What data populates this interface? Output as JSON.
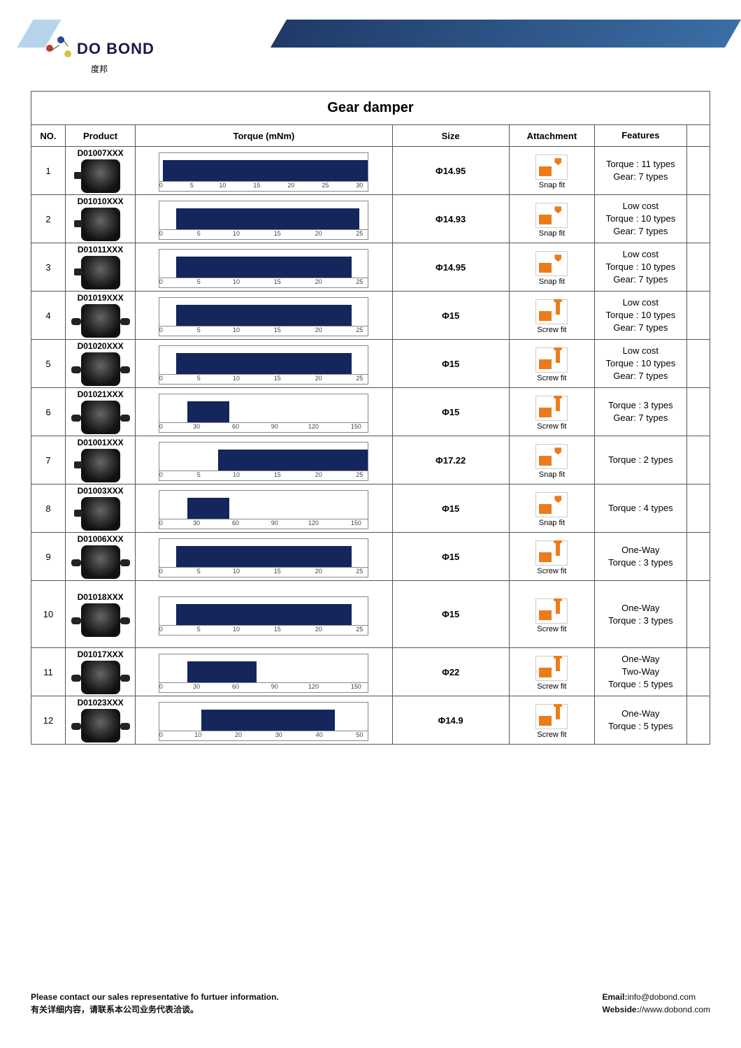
{
  "logo": {
    "brand": "DO BOND",
    "sub": "度邦"
  },
  "table": {
    "title": "Gear damper",
    "headers": {
      "no": "NO.",
      "product": "Product",
      "torque": "Torque (mNm)",
      "size": "Size",
      "attachment": "Attachment",
      "features": "Features"
    }
  },
  "bar_color": "#14265c",
  "icon_color": "#ec7c1b",
  "attach_labels": {
    "snap": "Snap fit",
    "screw": "Screw fit"
  },
  "rows": [
    {
      "no": 1,
      "code": "D01007XXX",
      "img": "snap",
      "axis_max": 30,
      "axis_ticks": [
        0,
        5,
        10,
        15,
        20,
        25,
        30
      ],
      "bar_start": 0.5,
      "bar_end": 30,
      "size": "Φ14.95",
      "attach": "snap",
      "features": [
        "Torque : 11 types",
        "Gear: 7 types"
      ]
    },
    {
      "no": 2,
      "code": "D01010XXX",
      "img": "snap",
      "axis_max": 25,
      "axis_ticks": [
        0,
        5,
        10,
        15,
        20,
        25
      ],
      "bar_start": 2,
      "bar_end": 24,
      "size": "Φ14.93",
      "attach": "snap",
      "features": [
        "Low cost",
        "Torque : 10 types",
        "Gear: 7 types"
      ]
    },
    {
      "no": 3,
      "code": "D01011XXX",
      "img": "snap",
      "axis_max": 25,
      "axis_ticks": [
        0,
        5,
        10,
        15,
        20,
        25
      ],
      "bar_start": 2,
      "bar_end": 23,
      "size": "Φ14.95",
      "attach": "snap",
      "features": [
        "Low cost",
        "Torque : 10 types",
        "Gear: 7 types"
      ]
    },
    {
      "no": 4,
      "code": "D01019XXX",
      "img": "screw",
      "axis_max": 25,
      "axis_ticks": [
        0,
        5,
        10,
        15,
        20,
        25
      ],
      "bar_start": 2,
      "bar_end": 23,
      "size": "Φ15",
      "attach": "screw",
      "features": [
        "Low cost",
        "Torque : 10 types",
        "Gear: 7 types"
      ]
    },
    {
      "no": 5,
      "code": "D01020XXX",
      "img": "screw",
      "axis_max": 25,
      "axis_ticks": [
        0,
        5,
        10,
        15,
        20,
        25
      ],
      "bar_start": 2,
      "bar_end": 23,
      "size": "Φ15",
      "attach": "screw",
      "features": [
        "Low cost",
        "Torque : 10 types",
        "Gear: 7 types"
      ]
    },
    {
      "no": 6,
      "code": "D01021XXX",
      "img": "screw",
      "axis_max": 150,
      "axis_ticks": [
        0,
        30,
        60,
        90,
        120,
        150
      ],
      "bar_start": 20,
      "bar_end": 50,
      "size": "Φ15",
      "attach": "screw",
      "features": [
        "Torque : 3 types",
        "Gear: 7 types"
      ]
    },
    {
      "no": 7,
      "code": "D01001XXX",
      "img": "snap",
      "axis_max": 25,
      "axis_ticks": [
        0,
        5,
        10,
        15,
        20,
        25
      ],
      "bar_start": 7,
      "bar_end": 25,
      "size": "Φ17.22",
      "attach": "snap",
      "features": [
        "Torque : 2 types"
      ]
    },
    {
      "no": 8,
      "code": "D01003XXX",
      "img": "snap",
      "axis_max": 150,
      "axis_ticks": [
        0,
        30,
        60,
        90,
        120,
        150
      ],
      "bar_start": 20,
      "bar_end": 50,
      "size": "Φ15",
      "attach": "snap",
      "features": [
        "Torque : 4 types"
      ]
    },
    {
      "no": 9,
      "code": "D01006XXX",
      "img": "screw",
      "axis_max": 25,
      "axis_ticks": [
        0,
        5,
        10,
        15,
        20,
        25
      ],
      "bar_start": 2,
      "bar_end": 23,
      "size": "Φ15",
      "attach": "screw",
      "features": [
        "One-Way",
        "Torque : 3 types"
      ]
    },
    {
      "no": 10,
      "code": "D01018XXX",
      "img": "screw",
      "axis_max": 25,
      "axis_ticks": [
        0,
        5,
        10,
        15,
        20,
        25
      ],
      "bar_start": 2,
      "bar_end": 23,
      "size": "Φ15",
      "attach": "screw",
      "features": [
        "One-Way",
        "Torque : 3 types"
      ],
      "tall": true
    },
    {
      "no": 11,
      "code": "D01017XXX",
      "img": "screw",
      "axis_max": 150,
      "axis_ticks": [
        0,
        30,
        60,
        90,
        120,
        150
      ],
      "bar_start": 20,
      "bar_end": 70,
      "size": "Φ22",
      "attach": "screw",
      "features": [
        "One-Way",
        "Two-Way",
        "Torque : 5 types"
      ]
    },
    {
      "no": 12,
      "code": "D01023XXX",
      "img": "screw",
      "axis_max": 50,
      "axis_ticks": [
        0,
        10,
        20,
        30,
        40,
        50
      ],
      "bar_start": 10,
      "bar_end": 42,
      "size": "Φ14.9",
      "attach": "screw",
      "features": [
        "One-Way",
        "Torque : 5 types"
      ]
    }
  ],
  "footer": {
    "contact_en": "Please contact our sales representative fo furtuer information.",
    "contact_zh": "有关详细内容，请联系本公司业务代表洽谈。",
    "email_label": "Email:",
    "email": "info@dobond.com",
    "web_label": "Webside:",
    "web": "//www.dobond.com"
  }
}
